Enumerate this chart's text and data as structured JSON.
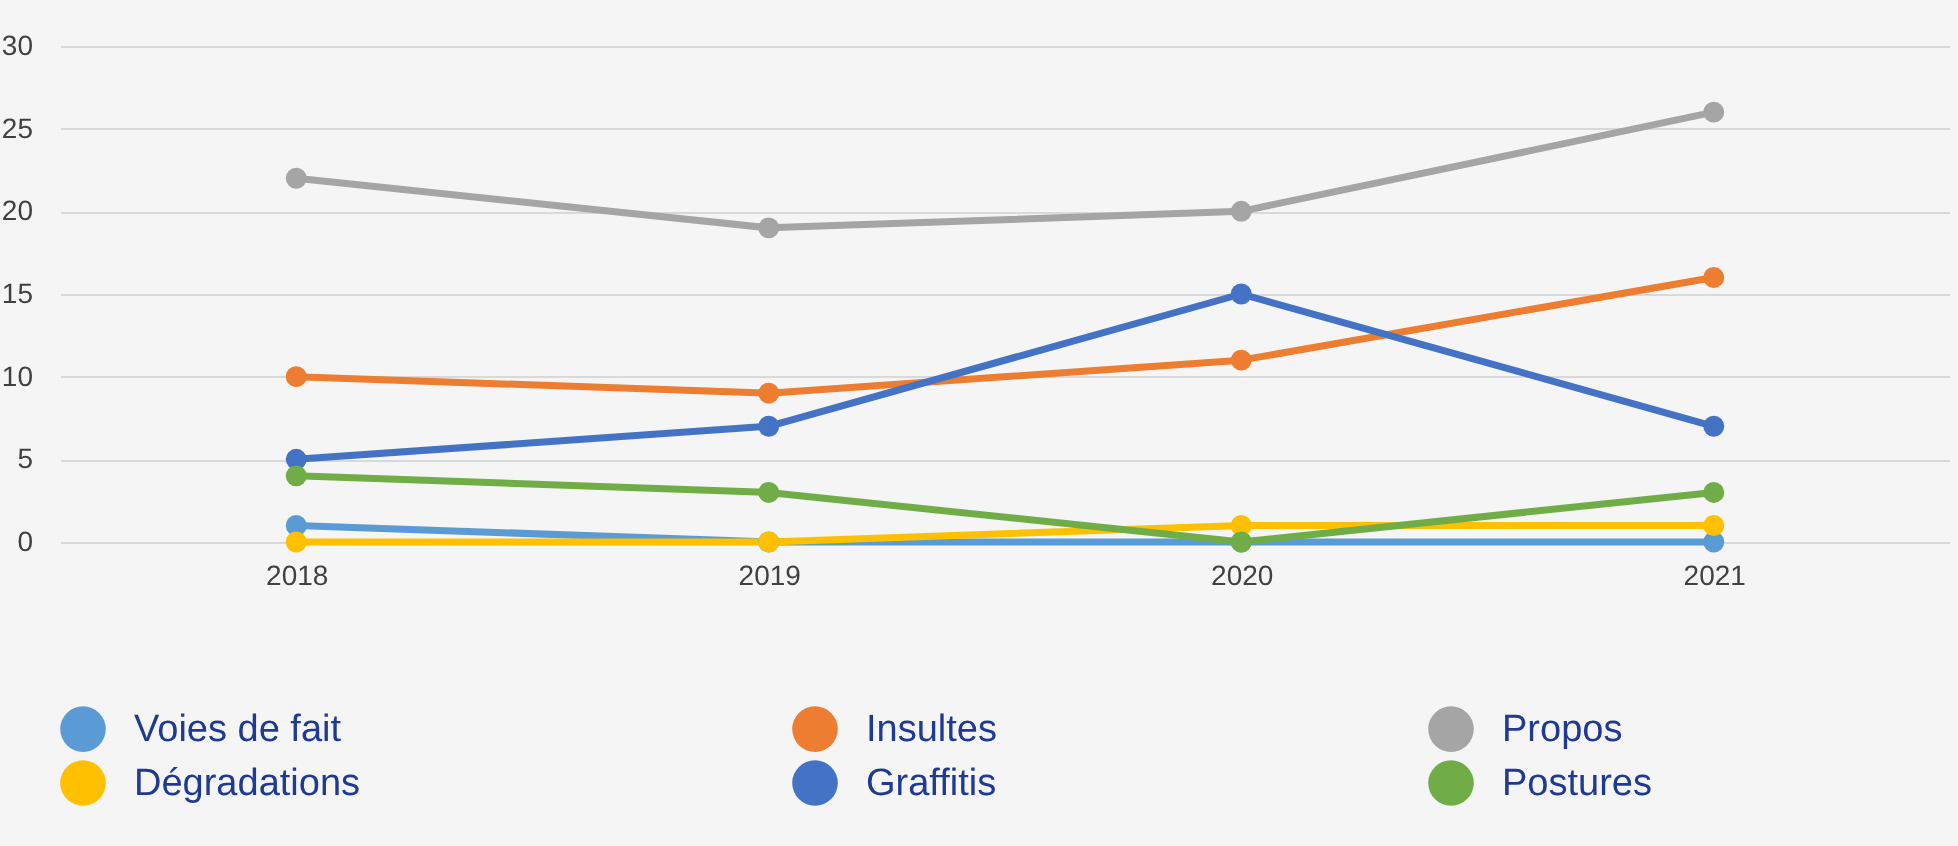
{
  "chart_data": {
    "type": "line",
    "categories": [
      "2018",
      "2019",
      "2020",
      "2021"
    ],
    "series": [
      {
        "name": "Voies de fait",
        "color": "#5b9bd5",
        "values": [
          1,
          0,
          0,
          0
        ]
      },
      {
        "name": "Insultes",
        "color": "#ed7d31",
        "values": [
          10,
          9,
          11,
          16
        ]
      },
      {
        "name": "Propos",
        "color": "#a5a5a5",
        "values": [
          22,
          19,
          20,
          26
        ]
      },
      {
        "name": "Dégradations",
        "color": "#ffc000",
        "values": [
          0,
          0,
          1,
          1
        ]
      },
      {
        "name": "Graffitis",
        "color": "#4472c4",
        "values": [
          5,
          7,
          15,
          7
        ]
      },
      {
        "name": "Postures",
        "color": "#70ad47",
        "values": [
          4,
          3,
          0,
          3
        ]
      }
    ],
    "ylim": [
      0,
      30
    ],
    "yticks": [
      0,
      5,
      10,
      15,
      20,
      25,
      30
    ],
    "grid": "y",
    "legend": "bottom",
    "marker": "circle",
    "line_style": "solid"
  }
}
